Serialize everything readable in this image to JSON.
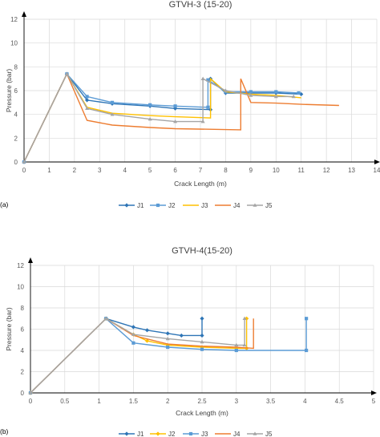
{
  "chart_data": [
    {
      "type": "line",
      "panel_label": "(a)",
      "title": "GTVH-3 (15-20)",
      "xlabel": "Crack Length (m)",
      "ylabel": "Pressure (bar)",
      "xlim": [
        0,
        14
      ],
      "ylim": [
        0,
        12
      ],
      "xticks": [
        "0",
        "1",
        "2",
        "3",
        "4",
        "5",
        "6",
        "7",
        "8",
        "9",
        "10",
        "11",
        "12",
        "13",
        "14"
      ],
      "yticks": [
        "0",
        "2",
        "4",
        "6",
        "8",
        "10",
        "12"
      ],
      "grid": true,
      "legend_position": "bottom",
      "series": [
        {
          "name": "J1",
          "color": "#2e75b6",
          "marker": "diamond",
          "x": [
            0,
            1.7,
            2.5,
            3.5,
            5,
            6,
            7.4,
            7.4,
            8,
            9,
            10,
            11
          ],
          "y": [
            0,
            7.4,
            5.2,
            4.9,
            4.7,
            4.5,
            4.4,
            7.0,
            5.8,
            5.8,
            5.8,
            5.7
          ]
        },
        {
          "name": "J2",
          "color": "#5b9bd5",
          "marker": "square",
          "x": [
            0,
            1.7,
            2.5,
            3.5,
            5,
            6,
            7.3,
            7.3,
            8,
            9,
            10,
            10.9
          ],
          "y": [
            0,
            7.4,
            5.5,
            5.0,
            4.8,
            4.7,
            4.6,
            6.9,
            5.9,
            5.9,
            5.9,
            5.8
          ]
        },
        {
          "name": "J3",
          "color": "#ffc000",
          "marker": "none",
          "x": [
            0,
            1.7,
            2.5,
            3.5,
            5,
            6,
            7.4,
            7.4,
            8,
            9,
            10,
            11
          ],
          "y": [
            0,
            7.4,
            4.6,
            4.1,
            3.9,
            3.8,
            3.7,
            7.0,
            5.9,
            5.7,
            5.6,
            5.4
          ]
        },
        {
          "name": "J4",
          "color": "#ed7d31",
          "marker": "none",
          "x": [
            0,
            1.7,
            2.5,
            3.5,
            5,
            6,
            8.6,
            8.6,
            9,
            10,
            11,
            12.5
          ],
          "y": [
            0,
            7.4,
            3.5,
            3.1,
            2.9,
            2.8,
            2.7,
            7.0,
            5.0,
            4.95,
            4.85,
            4.75
          ]
        },
        {
          "name": "J5",
          "color": "#a5a5a5",
          "marker": "triangle",
          "x": [
            0,
            1.7,
            2.5,
            3.5,
            5,
            6,
            7.1,
            7.1,
            8,
            9,
            10,
            10.7
          ],
          "y": [
            0,
            7.4,
            4.5,
            4.0,
            3.6,
            3.4,
            3.4,
            7.0,
            6.0,
            5.6,
            5.5,
            5.5
          ]
        }
      ]
    },
    {
      "type": "line",
      "panel_label": "(b)",
      "title": "GTVH-4(15-20)",
      "xlabel": "Crack Length (m)",
      "ylabel": "Pressure (bar)",
      "xlim": [
        0,
        5
      ],
      "ylim": [
        0,
        12
      ],
      "xticks": [
        "0",
        "0.5",
        "1",
        "1.5",
        "2",
        "2.5",
        "3",
        "3.5",
        "4",
        "4.5",
        "5"
      ],
      "yticks": [
        "0",
        "2",
        "4",
        "6",
        "8",
        "10",
        "12"
      ],
      "grid": true,
      "legend_position": "bottom",
      "series": [
        {
          "name": "J1",
          "color": "#2e75b6",
          "marker": "diamond",
          "x": [
            0,
            1.1,
            1.5,
            1.7,
            2.0,
            2.2,
            2.5,
            2.5
          ],
          "y": [
            0,
            7.0,
            6.2,
            5.9,
            5.6,
            5.4,
            5.4,
            7.0
          ]
        },
        {
          "name": "J2",
          "color": "#ffc000",
          "marker": "diamond",
          "x": [
            0,
            1.1,
            1.5,
            1.7,
            2.0,
            2.5,
            3.0,
            3.15,
            3.15
          ],
          "y": [
            0,
            7.0,
            5.5,
            4.9,
            4.5,
            4.3,
            4.2,
            4.2,
            7.0
          ]
        },
        {
          "name": "J3",
          "color": "#5b9bd5",
          "marker": "square",
          "x": [
            0,
            1.1,
            1.5,
            2.0,
            2.5,
            3.0,
            4.02,
            4.02
          ],
          "y": [
            0,
            7.0,
            4.7,
            4.3,
            4.1,
            4.0,
            4.0,
            7.0
          ]
        },
        {
          "name": "J4",
          "color": "#ed7d31",
          "marker": "none",
          "x": [
            0,
            1.1,
            1.5,
            2.0,
            2.5,
            3.0,
            3.25,
            3.25
          ],
          "y": [
            0,
            7.0,
            5.4,
            4.6,
            4.4,
            4.3,
            4.2,
            7.0
          ]
        },
        {
          "name": "J5",
          "color": "#a5a5a5",
          "marker": "triangle",
          "x": [
            0,
            1.1,
            1.5,
            2.0,
            2.5,
            3.0,
            3.12,
            3.12
          ],
          "y": [
            0,
            7.0,
            5.5,
            5.1,
            4.8,
            4.5,
            4.5,
            7.0
          ]
        }
      ]
    }
  ]
}
